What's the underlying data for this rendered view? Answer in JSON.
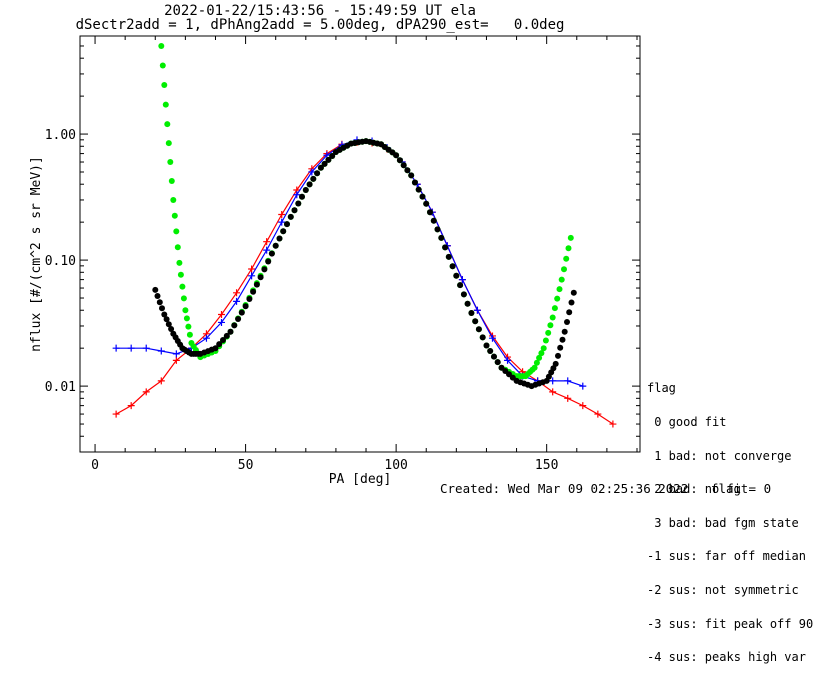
{
  "chart_data": {
    "type": "line",
    "title": "2022-01-22/15:43:56 - 15:49:59 UT ela",
    "subtitle": "dSectr2add = 1, dPhAng2add = 5.00deg, dPA290_est=   0.0deg",
    "xlabel": "PA [deg]",
    "ylabel": "nflux [#/(cm^2 s sr MeV)]",
    "xlim": [
      -5,
      181
    ],
    "ylim": [
      0.003,
      6.0
    ],
    "yscale": "log",
    "grid": false,
    "x_ticks": [
      0,
      50,
      100,
      150
    ],
    "x_tick_labels": [
      "0",
      "50",
      "100",
      "150"
    ],
    "y_ticks": [
      0.01,
      0.1,
      1.0
    ],
    "y_tick_labels": [
      "0.01",
      "0.10",
      "1.00"
    ],
    "series": [
      {
        "color": "#ff0000",
        "style": "line+plus",
        "x": [
          7,
          12,
          17,
          22,
          27,
          32,
          37,
          42,
          47,
          52,
          57,
          62,
          67,
          72,
          77,
          82,
          87,
          92,
          97,
          102,
          107,
          112,
          117,
          122,
          127,
          132,
          137,
          142,
          147,
          152,
          157,
          162,
          167,
          172
        ],
        "y": [
          0.006,
          0.007,
          0.009,
          0.011,
          0.016,
          0.02,
          0.026,
          0.037,
          0.055,
          0.085,
          0.14,
          0.23,
          0.36,
          0.53,
          0.7,
          0.83,
          0.86,
          0.85,
          0.76,
          0.6,
          0.4,
          0.24,
          0.13,
          0.07,
          0.04,
          0.025,
          0.017,
          0.013,
          0.011,
          0.009,
          0.008,
          0.007,
          0.006,
          0.005
        ]
      },
      {
        "color": "#0000ff",
        "style": "line+plus",
        "x": [
          7,
          12,
          17,
          22,
          27,
          32,
          37,
          42,
          47,
          52,
          57,
          62,
          67,
          72,
          77,
          82,
          87,
          92,
          97,
          102,
          107,
          112,
          117,
          122,
          127,
          132,
          137,
          142,
          147,
          152,
          157,
          162
        ],
        "y": [
          0.02,
          0.02,
          0.02,
          0.019,
          0.018,
          0.02,
          0.024,
          0.032,
          0.047,
          0.075,
          0.12,
          0.2,
          0.33,
          0.5,
          0.68,
          0.82,
          0.9,
          0.88,
          0.78,
          0.6,
          0.4,
          0.24,
          0.13,
          0.07,
          0.04,
          0.024,
          0.016,
          0.012,
          0.011,
          0.011,
          0.011,
          0.01
        ]
      },
      {
        "color": "#00ee00",
        "style": "dots",
        "x": [
          22,
          24,
          26,
          28,
          30,
          32,
          35,
          40,
          45,
          50,
          55,
          60,
          65,
          70,
          75,
          80,
          85,
          90,
          95,
          100,
          105,
          110,
          115,
          120,
          125,
          130,
          135,
          140,
          143,
          146,
          149,
          152,
          155,
          158
        ],
        "y": [
          5.0,
          1.2,
          0.3,
          0.095,
          0.04,
          0.022,
          0.017,
          0.019,
          0.027,
          0.044,
          0.075,
          0.13,
          0.22,
          0.36,
          0.54,
          0.72,
          0.84,
          0.88,
          0.83,
          0.68,
          0.47,
          0.28,
          0.15,
          0.075,
          0.038,
          0.021,
          0.014,
          0.012,
          0.012,
          0.014,
          0.02,
          0.035,
          0.07,
          0.15
        ]
      },
      {
        "color": "#000000",
        "style": "dots",
        "x": [
          20,
          23,
          26,
          29,
          32,
          35,
          40,
          45,
          50,
          55,
          60,
          65,
          70,
          75,
          80,
          85,
          90,
          95,
          100,
          105,
          110,
          115,
          120,
          125,
          130,
          135,
          140,
          145,
          150,
          153,
          156,
          159
        ],
        "y": [
          0.058,
          0.037,
          0.026,
          0.02,
          0.018,
          0.018,
          0.02,
          0.027,
          0.043,
          0.073,
          0.13,
          0.22,
          0.36,
          0.54,
          0.72,
          0.84,
          0.88,
          0.83,
          0.68,
          0.47,
          0.28,
          0.15,
          0.075,
          0.038,
          0.021,
          0.014,
          0.011,
          0.01,
          0.011,
          0.015,
          0.027,
          0.055
        ]
      }
    ]
  },
  "legend": {
    "lines": [
      "flag",
      " 0 good fit",
      " 1 bad: not converge",
      " 2 bad: no fit",
      " 3 bad: bad fgm state",
      "-1 sus: far off median",
      "-2 sus: not symmetric",
      "-3 sus: fit peak off 90",
      "-4 sus: peaks high var"
    ]
  },
  "footer": "Created: Wed Mar 09 02:25:36 2022   flag = 0"
}
